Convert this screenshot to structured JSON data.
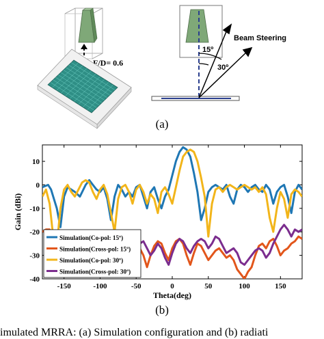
{
  "figure_a": {
    "fd_label": "F/D= 0.6",
    "beam_label": "Beam Steering",
    "angle1": "15º",
    "angle2": "30º",
    "sublabel": "(a)"
  },
  "figure_b": {
    "sublabel": "(b)"
  },
  "caption": "imulated MRRA: (a) Simulation configuration and (b) radiati",
  "colors": {
    "co15": "#1f77b4",
    "cross15": "#e2561b",
    "co30": "#f2b51a",
    "cross30": "#7b2d8e",
    "horn": "#7fa878",
    "array": "#2f8f86",
    "dash": "#2b3f8e"
  },
  "chart_data": {
    "type": "line",
    "xlabel": "Theta(deg)",
    "ylabel": "Gain (dBi)",
    "xlim": [
      -180,
      180
    ],
    "ylim": [
      -40,
      17
    ],
    "xticks": [
      -150,
      -100,
      -50,
      0,
      50,
      100,
      150
    ],
    "yticks": [
      10,
      0,
      -10,
      -20,
      -30,
      -40
    ],
    "grid": false,
    "legend_position": "bottom-left",
    "series": [
      {
        "name": "Simulation(Co-pol: 15º)",
        "color": "#1f77b4",
        "x": [
          -180,
          -172,
          -168,
          -160,
          -155,
          -150,
          -145,
          -140,
          -135,
          -128,
          -120,
          -115,
          -110,
          -105,
          -100,
          -95,
          -90,
          -85,
          -80,
          -75,
          -70,
          -65,
          -60,
          -55,
          -50,
          -45,
          -40,
          -35,
          -30,
          -25,
          -20,
          -15,
          -10,
          -5,
          0,
          5,
          10,
          15,
          20,
          25,
          30,
          35,
          40,
          45,
          50,
          55,
          60,
          65,
          70,
          75,
          80,
          85,
          90,
          95,
          100,
          105,
          110,
          115,
          120,
          125,
          130,
          135,
          140,
          145,
          150,
          155,
          160,
          165,
          170,
          175,
          180
        ],
        "y": [
          -1,
          0,
          -2,
          -10,
          -18,
          -5,
          -1,
          -2,
          -3,
          -5,
          0,
          2,
          0,
          -2,
          -3,
          -1,
          -6,
          -15,
          -5,
          0,
          -2,
          -5,
          -3,
          -5,
          -1,
          0,
          -5,
          -10,
          -3,
          -1,
          -6,
          -10,
          -5,
          -2,
          4,
          10,
          14,
          16,
          15,
          12,
          5,
          -3,
          -15,
          -10,
          -3,
          -1,
          0,
          -1,
          -2,
          0,
          -5,
          -8,
          -2,
          0,
          -1,
          -3,
          -1,
          0,
          -2,
          -3,
          0,
          -2,
          -8,
          -3,
          -1,
          0,
          -5,
          -12,
          -3,
          0,
          -2
        ]
      },
      {
        "name": "Simulation(Cross-pol: 15º)",
        "color": "#e2561b",
        "x": [
          -180,
          -175,
          -170,
          -165,
          -160,
          -155,
          -150,
          -145,
          -140,
          -135,
          -130,
          -125,
          -120,
          -115,
          -110,
          -105,
          -100,
          -95,
          -90,
          -85,
          -80,
          -75,
          -70,
          -65,
          -60,
          -55,
          -50,
          -45,
          -40,
          -35,
          -30,
          -25,
          -20,
          -15,
          -10,
          -5,
          0,
          5,
          10,
          15,
          20,
          25,
          30,
          35,
          40,
          45,
          50,
          55,
          60,
          65,
          70,
          75,
          80,
          85,
          90,
          95,
          100,
          105,
          110,
          115,
          120,
          125,
          130,
          135,
          140,
          145,
          150,
          155,
          160,
          165,
          170,
          175,
          180
        ],
        "y": [
          -20,
          -19,
          -19,
          -22,
          -28,
          -32,
          -26,
          -22,
          -23,
          -27,
          -25,
          -22,
          -21,
          -24,
          -27,
          -22,
          -20,
          -21,
          -26,
          -31,
          -27,
          -24,
          -26,
          -33,
          -38,
          -32,
          -28,
          -27,
          -30,
          -35,
          -30,
          -26,
          -24,
          -25,
          -29,
          -32,
          -27,
          -24,
          -23,
          -25,
          -30,
          -34,
          -29,
          -25,
          -26,
          -29,
          -32,
          -30,
          -28,
          -27,
          -29,
          -31,
          -30,
          -32,
          -36,
          -38,
          -40,
          -37,
          -35,
          -30,
          -26,
          -25,
          -27,
          -24,
          -23,
          -26,
          -30,
          -28,
          -27,
          -25,
          -24,
          -22,
          -23
        ]
      },
      {
        "name": "Simulation(Co-pol: 30º)",
        "color": "#f2b51a",
        "x": [
          -180,
          -175,
          -170,
          -165,
          -160,
          -155,
          -150,
          -145,
          -140,
          -135,
          -130,
          -125,
          -120,
          -115,
          -110,
          -105,
          -100,
          -95,
          -90,
          -85,
          -80,
          -75,
          -70,
          -65,
          -60,
          -55,
          -50,
          -45,
          -40,
          -35,
          -30,
          -25,
          -20,
          -15,
          -10,
          -5,
          0,
          5,
          10,
          15,
          20,
          25,
          30,
          35,
          40,
          45,
          50,
          55,
          60,
          65,
          70,
          75,
          80,
          85,
          90,
          95,
          100,
          105,
          110,
          115,
          120,
          125,
          130,
          135,
          140,
          145,
          150,
          155,
          160,
          165,
          170,
          175,
          180
        ],
        "y": [
          -5,
          -2,
          -8,
          -22,
          -26,
          -10,
          -2,
          0,
          -3,
          -5,
          -2,
          1,
          2,
          1,
          -3,
          -6,
          -2,
          0,
          -4,
          -12,
          -20,
          -6,
          -1,
          0,
          -3,
          -8,
          -2,
          0,
          -3,
          -8,
          -4,
          -6,
          -12,
          -3,
          -1,
          -4,
          -8,
          -1,
          6,
          12,
          14,
          15,
          14,
          10,
          3,
          -5,
          -22,
          -8,
          -2,
          -1,
          -3,
          -1,
          0,
          -1,
          -2,
          -1,
          0,
          -1,
          -2,
          -1,
          -3,
          -1,
          -4,
          -14,
          -20,
          -10,
          -3,
          -6,
          -14,
          -4,
          -2,
          -3,
          -5
        ]
      },
      {
        "name": "Simulation(Cross-pol: 30º)",
        "color": "#7b2d8e",
        "x": [
          -45,
          -40,
          -35,
          -30,
          -25,
          -20,
          -15,
          -10,
          -5,
          0,
          5,
          10,
          15,
          20,
          25,
          30,
          35,
          40,
          45,
          50,
          55,
          60,
          65,
          70,
          75,
          80,
          85,
          90,
          95,
          100,
          105,
          110,
          115,
          120,
          125,
          130,
          135,
          140,
          145,
          150,
          155,
          160,
          165,
          170,
          175,
          180
        ],
        "y": [
          -25,
          -24,
          -27,
          -30,
          -28,
          -25,
          -27,
          -31,
          -34,
          -29,
          -25,
          -23,
          -24,
          -27,
          -29,
          -26,
          -24,
          -23,
          -24,
          -27,
          -25,
          -22,
          -23,
          -26,
          -29,
          -28,
          -27,
          -29,
          -33,
          -34,
          -32,
          -30,
          -28,
          -27,
          -28,
          -31,
          -29,
          -25,
          -22,
          -19,
          -17,
          -19,
          -22,
          -19,
          -20,
          -19
        ]
      }
    ]
  }
}
